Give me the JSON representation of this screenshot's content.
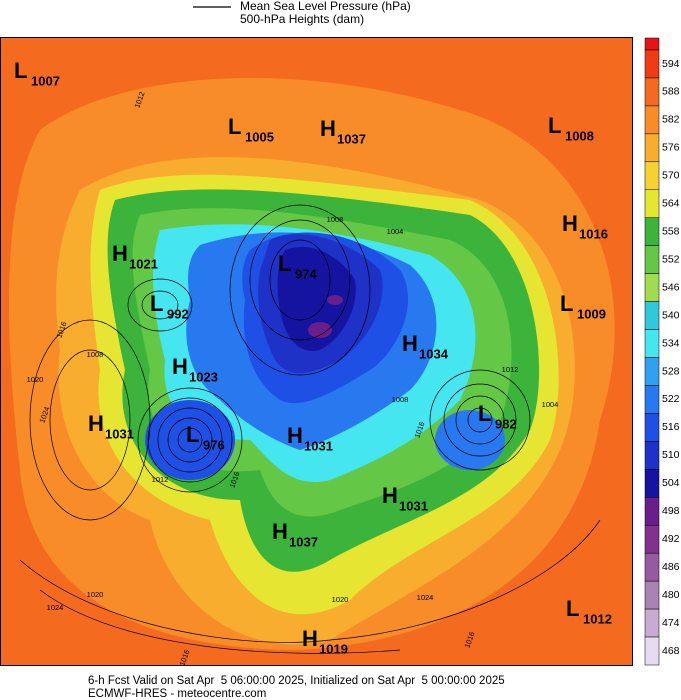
{
  "legend": {
    "line1": "Mean Sea Level Pressure (hPa)",
    "line2": "500-hPa Heights (dam)"
  },
  "centers": [
    {
      "type": "L",
      "value": 1007
    },
    {
      "type": "L",
      "value": 1005
    },
    {
      "type": "H",
      "value": 1037
    },
    {
      "type": "L",
      "value": 1008
    },
    {
      "type": "H",
      "value": 1016
    },
    {
      "type": "H",
      "value": 1021
    },
    {
      "type": "L",
      "value": 974
    },
    {
      "type": "L",
      "value": 992
    },
    {
      "type": "L",
      "value": 1009
    },
    {
      "type": "H",
      "value": 1034
    },
    {
      "type": "H",
      "value": 1023
    },
    {
      "type": "H",
      "value": 1031
    },
    {
      "type": "L",
      "value": 976
    },
    {
      "type": "H",
      "value": 1031
    },
    {
      "type": "L",
      "value": 982
    },
    {
      "type": "H",
      "value": 1031
    },
    {
      "type": "H",
      "value": 1037
    },
    {
      "type": "L",
      "value": 1012
    },
    {
      "type": "H",
      "value": 1019
    }
  ],
  "contour_labels": [
    1012,
    1008,
    1004,
    1016,
    1008,
    1020,
    1024,
    1012,
    1008,
    1016,
    1004,
    1012,
    1016,
    1020,
    1024,
    1016,
    1020,
    1024,
    1016
  ],
  "colorbar": {
    "levels": [
      594,
      588,
      582,
      576,
      570,
      564,
      558,
      552,
      546,
      540,
      534,
      528,
      522,
      516,
      510,
      504,
      498,
      492,
      486,
      480,
      474,
      468
    ],
    "colors": [
      "#f03c14",
      "#f46a1e",
      "#f78c28",
      "#f9ad2e",
      "#f5d232",
      "#e6e632",
      "#3cb43c",
      "#64c846",
      "#a0dc50",
      "#32c8dc",
      "#46e6f0",
      "#32a0f0",
      "#2878f0",
      "#1e50e6",
      "#1e32c8",
      "#1414a0",
      "#6a1e8c",
      "#82328c",
      "#965aa0",
      "#aa82b4",
      "#c8aad2",
      "#e6dcf0"
    ]
  },
  "footer": {
    "line1": "6-h Fcst Valid on Sat Apr  5 06:00:00 2025, Initialized on Sat Apr  5 00:00:00 2025",
    "line2": "ECMWF-HRES - meteocentre.com"
  }
}
